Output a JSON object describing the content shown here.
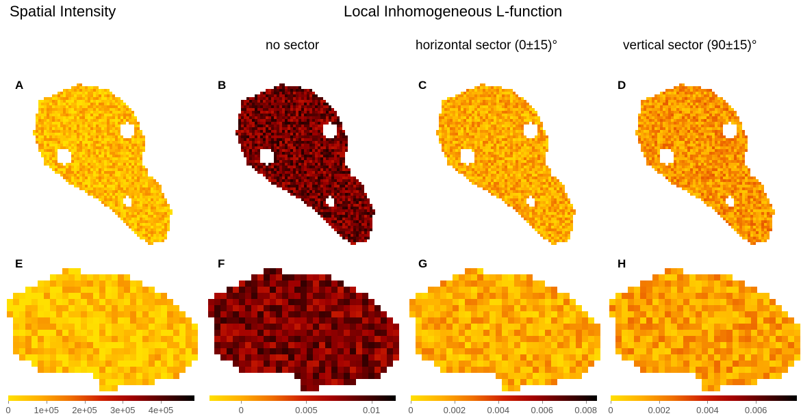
{
  "headings": {
    "left": "Spatial Intensity",
    "right": "Local Inhomogeneous L-function"
  },
  "columns": [
    {
      "subtitle": ""
    },
    {
      "subtitle": "no sector"
    },
    {
      "subtitle": "horizontal sector (0±15)°"
    },
    {
      "subtitle": "vertical sector (90±15)°"
    }
  ],
  "panels": [
    {
      "letter": "A",
      "shape": "top",
      "palette": "light",
      "intensity": 0.22
    },
    {
      "letter": "B",
      "shape": "top",
      "palette": "dark",
      "intensity": 0.75
    },
    {
      "letter": "C",
      "shape": "top",
      "palette": "light",
      "intensity": 0.32
    },
    {
      "letter": "D",
      "shape": "top",
      "palette": "light",
      "intensity": 0.42
    },
    {
      "letter": "E",
      "shape": "bottom",
      "palette": "light",
      "intensity": 0.18
    },
    {
      "letter": "F",
      "shape": "bottom",
      "palette": "dark",
      "intensity": 0.72
    },
    {
      "letter": "G",
      "shape": "bottom",
      "palette": "light",
      "intensity": 0.3
    },
    {
      "letter": "H",
      "shape": "bottom",
      "palette": "light",
      "intensity": 0.36
    }
  ],
  "colorbars": [
    {
      "ticks": [
        {
          "label": "0",
          "frac": 0.0
        },
        {
          "label": "1e+05",
          "frac": 0.205
        },
        {
          "label": "2e+05",
          "frac": 0.41
        },
        {
          "label": "3e+05",
          "frac": 0.615
        },
        {
          "label": "4e+05",
          "frac": 0.82
        }
      ]
    },
    {
      "ticks": [
        {
          "label": "0",
          "frac": 0.17
        },
        {
          "label": "0.005",
          "frac": 0.52
        },
        {
          "label": "0.01",
          "frac": 0.87
        }
      ]
    },
    {
      "ticks": [
        {
          "label": "0",
          "frac": 0.0
        },
        {
          "label": "0.002",
          "frac": 0.235
        },
        {
          "label": "0.004",
          "frac": 0.47
        },
        {
          "label": "0.006",
          "frac": 0.705
        },
        {
          "label": "0.008",
          "frac": 0.94
        }
      ]
    },
    {
      "ticks": [
        {
          "label": "0",
          "frac": 0.0
        },
        {
          "label": "0.002",
          "frac": 0.26
        },
        {
          "label": "0.004",
          "frac": 0.52
        },
        {
          "label": "0.006",
          "frac": 0.78
        }
      ]
    }
  ],
  "colors": {
    "scale": [
      "#ffe000",
      "#ffb000",
      "#f07000",
      "#d02000",
      "#a00000",
      "#500000",
      "#000000"
    ]
  }
}
